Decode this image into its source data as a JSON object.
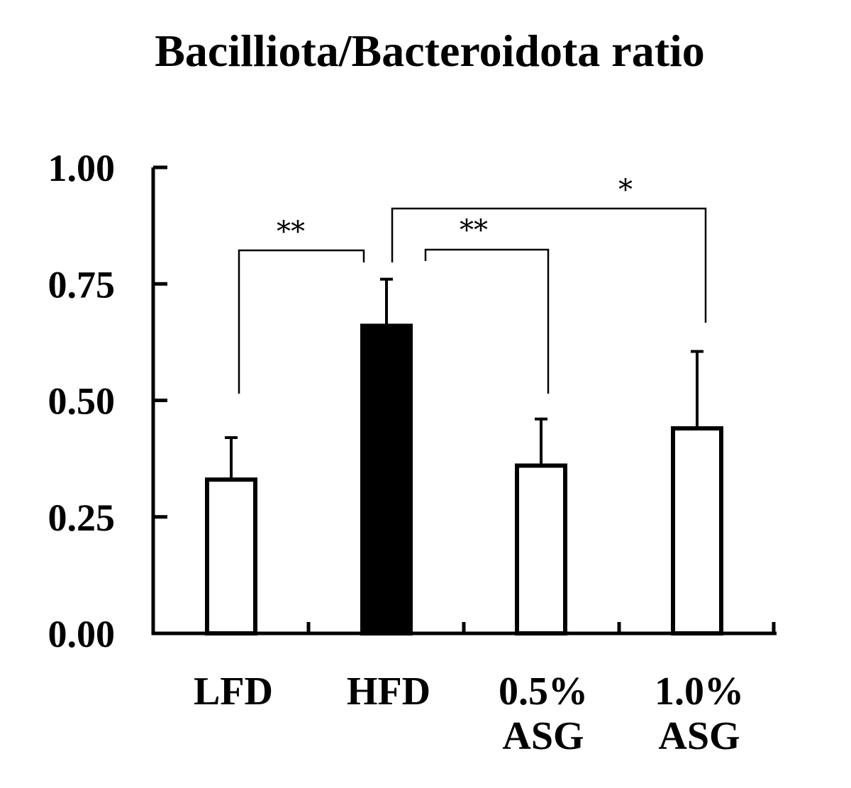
{
  "chart_data": {
    "type": "bar",
    "title": "Bacilliota/Bacteroidota ratio",
    "xlabel": "",
    "ylabel": "",
    "ylim": [
      0,
      1.0
    ],
    "yticks": [
      "0.00",
      "0.25",
      "0.50",
      "0.75",
      "1.00"
    ],
    "ytick_values": [
      0,
      0.25,
      0.5,
      0.75,
      1.0
    ],
    "categories": [
      [
        "LFD"
      ],
      [
        "HFD"
      ],
      [
        "0.5%",
        "ASG"
      ],
      [
        "1.0%",
        "ASG"
      ]
    ],
    "values": [
      0.33,
      0.66,
      0.36,
      0.44
    ],
    "errors": [
      0.09,
      0.1,
      0.1,
      0.165
    ],
    "bar_fill": [
      "#ffffff",
      "#000000",
      "#ffffff",
      "#ffffff"
    ],
    "bar_stroke": "#000000",
    "grid": false,
    "legend": "none",
    "significance": [
      {
        "from": 0,
        "to": 1,
        "label": "**"
      },
      {
        "from": 1,
        "to": 2,
        "label": "**"
      },
      {
        "from": 1,
        "to": 3,
        "label": "*"
      }
    ]
  }
}
